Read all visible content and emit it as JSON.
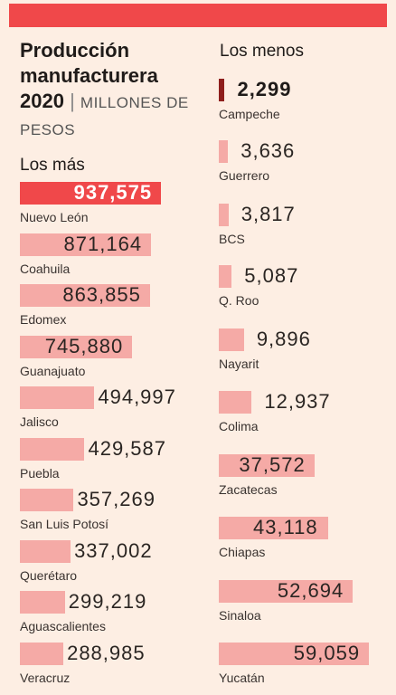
{
  "colors": {
    "top_bar": "#f0484a",
    "highlight": "#f0484a",
    "bar": "#f5aaa6",
    "min_bar": "#8e1e1c",
    "background": "#fdeee3"
  },
  "header": {
    "title_line1": "Producción",
    "title_line2": "manufacturera",
    "title_year": "2020",
    "title_separator": "|",
    "units": "MILLONES DE PESOS"
  },
  "chart_data": [
    {
      "type": "bar",
      "title": "Los más",
      "categories": [
        "Nuevo León",
        "Coahuila",
        "Edomex",
        "Guanajuato",
        "Jalisco",
        "Puebla",
        "San Luis Potosí",
        "Querétaro",
        "Aguascalientes",
        "Veracruz"
      ],
      "values": [
        937575,
        871164,
        863855,
        745880,
        494997,
        429587,
        357269,
        337002,
        299219,
        288985
      ],
      "value_labels": [
        "937,575",
        "871,164",
        "863,855",
        "745,880",
        "494,997",
        "429,587",
        "357,269",
        "337,002",
        "299,219",
        "288,985"
      ],
      "ylabel": "Millones de pesos"
    },
    {
      "type": "bar",
      "title": "Los menos",
      "categories": [
        "Campeche",
        "Guerrero",
        "BCS",
        "Q. Roo",
        "Nayarit",
        "Colima",
        "Zacatecas",
        "Chiapas",
        "Sinaloa",
        "Yucatán"
      ],
      "values": [
        2299,
        3636,
        3817,
        5087,
        9896,
        12937,
        37572,
        43118,
        52694,
        59059
      ],
      "value_labels": [
        "2,299",
        "3,636",
        "3,817",
        "5,087",
        "9,896",
        "12,937",
        "37,572",
        "43,118",
        "52,694",
        "59,059"
      ],
      "ylabel": "Millones de pesos"
    }
  ]
}
